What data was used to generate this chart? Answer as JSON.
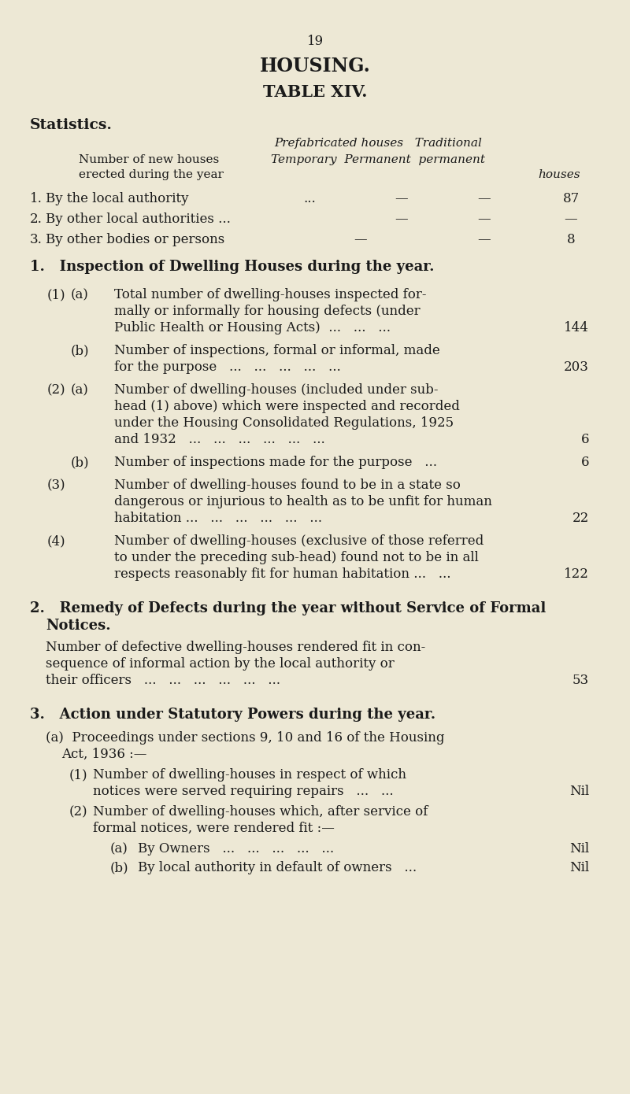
{
  "bg_color": "#ede8d5",
  "text_color": "#1a1a1a",
  "page_number": "19",
  "title1": "HOUSING.",
  "title2": "TABLE XIV.",
  "section_header": "Statistics.",
  "col_h1": "Prefabricated houses   Traditional",
  "col_h2l": "Number of new houses",
  "col_h2r": "Temporary  Permanent  permanent",
  "col_h3l": "erected during the year",
  "col_h3r": "houses",
  "section1_title": "1.   Inspection of Dwelling Houses during the year.",
  "section2_title1": "2.   Remedy of Defects during the year without Service of Formal",
  "section2_title2": "     Notices.",
  "section3_title": "3.   Action under Statutory Powers during the year."
}
